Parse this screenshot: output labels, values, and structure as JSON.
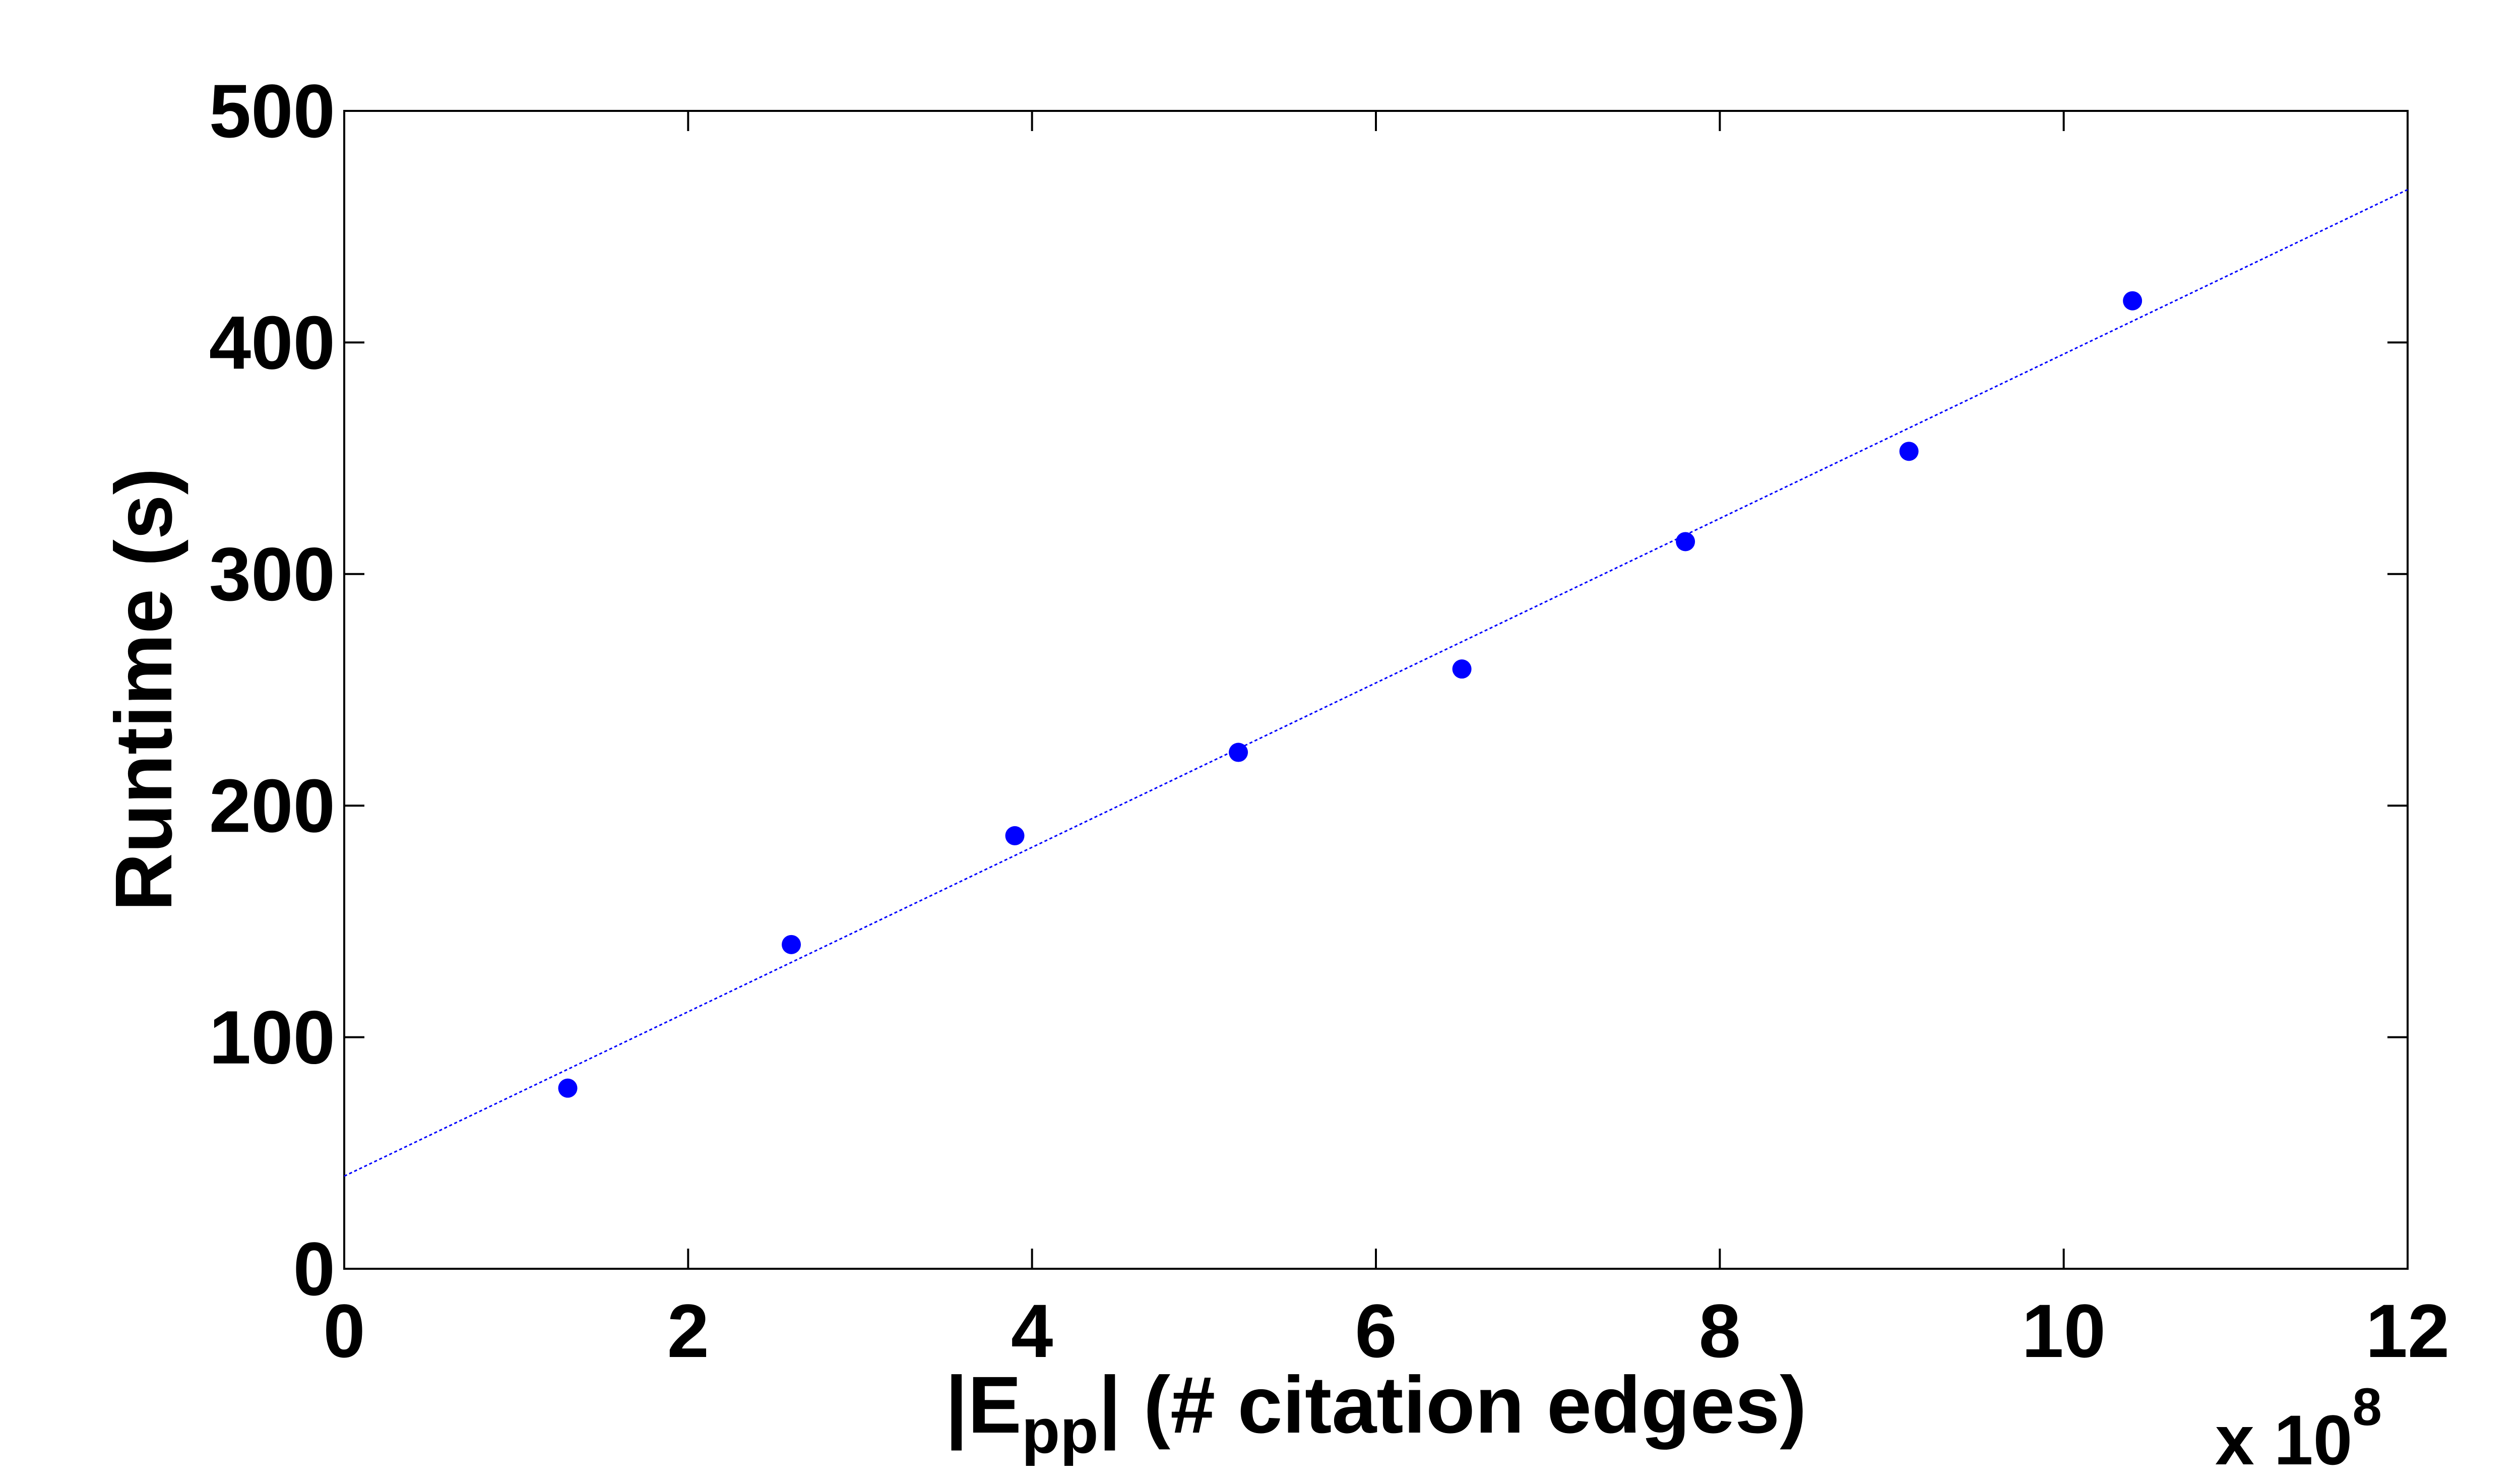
{
  "chart_data": {
    "type": "scatter",
    "title": "",
    "xlabel": {
      "prefix": "|E",
      "subscript": "pp",
      "suffix": "| (# citation edges)"
    },
    "ylabel": "Runtime (s)",
    "x_multiplier": {
      "base": "x 10",
      "exponent": "8"
    },
    "xlim": [
      0,
      12
    ],
    "ylim": [
      0,
      500
    ],
    "xticks": [
      0,
      2,
      4,
      6,
      8,
      10,
      12
    ],
    "yticks": [
      0,
      100,
      200,
      300,
      400,
      500
    ],
    "xtick_labels": [
      "0",
      "2",
      "4",
      "6",
      "8",
      "10",
      "12"
    ],
    "ytick_labels": [
      "0",
      "100",
      "200",
      "300",
      "400",
      "500"
    ],
    "grid": false,
    "series": [
      {
        "kind": "points",
        "color": "#0000ff",
        "x": [
          1.3,
          2.6,
          3.9,
          5.2,
          6.5,
          7.8,
          9.1,
          10.4
        ],
        "y": [
          78,
          140,
          187,
          223,
          259,
          314,
          353,
          418
        ]
      },
      {
        "kind": "fit-line",
        "color": "#0000ff",
        "style": "dotted",
        "x": [
          0,
          12
        ],
        "y": [
          40,
          466
        ]
      }
    ]
  }
}
